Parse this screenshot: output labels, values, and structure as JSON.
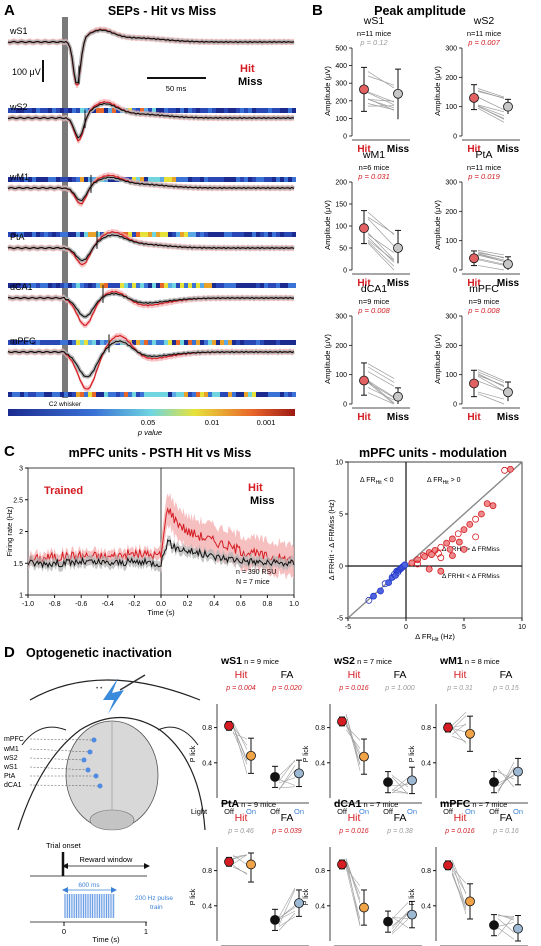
{
  "panelA": {
    "letter": "A",
    "title": "SEPs - Hit vs Miss",
    "regions": [
      "wS1",
      "wS2",
      "wM1",
      "PtA",
      "dCA1",
      "mPFC"
    ],
    "scale_amp": "100 μV",
    "scale_time": "50 ms",
    "legend_hit": "Hit",
    "legend_miss": "Miss",
    "stim_label": "C2 whisker",
    "colorbar_ticks": [
      "0.05",
      "0.01",
      "0.001"
    ],
    "colorbar_label": "p value"
  },
  "panelB": {
    "letter": "B",
    "title": "Peak amplitude",
    "ylabel": "Amplitude (μV)",
    "x_hit": "Hit",
    "x_miss": "Miss",
    "plots": [
      {
        "region": "wS1",
        "n": "n=11 mice",
        "p": "p = 0.12",
        "sig": false,
        "yticks": [
          "0",
          "100",
          "200",
          "300",
          "400",
          "500"
        ],
        "ymax": 500,
        "hit": 265,
        "hit_lo": 140,
        "hit_hi": 390,
        "miss": 240,
        "miss_lo": 95,
        "miss_hi": 380
      },
      {
        "region": "wS2",
        "n": "n=11 mice",
        "p": "p = 0.007",
        "sig": true,
        "yticks": [
          "0",
          "100",
          "200",
          "300"
        ],
        "ymax": 300,
        "hit": 130,
        "hit_lo": 90,
        "hit_hi": 175,
        "miss": 100,
        "miss_lo": 75,
        "miss_hi": 125
      },
      {
        "region": "wM1",
        "n": "n=6 mice",
        "p": "p = 0.031",
        "sig": true,
        "yticks": [
          "0",
          "50",
          "100",
          "150",
          "200"
        ],
        "ymax": 200,
        "hit": 95,
        "hit_lo": 60,
        "hit_hi": 135,
        "miss": 50,
        "miss_lo": 15,
        "miss_hi": 90
      },
      {
        "region": "PtA",
        "n": "n=11 mice",
        "p": "p = 0.019",
        "sig": true,
        "yticks": [
          "0",
          "100",
          "200",
          "300"
        ],
        "ymax": 300,
        "hit": 40,
        "hit_lo": 15,
        "hit_hi": 65,
        "miss": 20,
        "miss_lo": -5,
        "miss_hi": 45
      },
      {
        "region": "dCA1",
        "n": "n=9 mice",
        "p": "p = 0.008",
        "sig": true,
        "yticks": [
          "0",
          "100",
          "200",
          "300"
        ],
        "ymax": 300,
        "hit": 80,
        "hit_lo": 30,
        "hit_hi": 140,
        "miss": 25,
        "miss_lo": 0,
        "miss_hi": 55
      },
      {
        "region": "mPFC",
        "n": "n=9 mice",
        "p": "p = 0.008",
        "sig": true,
        "yticks": [
          "0",
          "100",
          "200",
          "300"
        ],
        "ymax": 300,
        "hit": 70,
        "hit_lo": 25,
        "hit_hi": 115,
        "miss": 40,
        "miss_lo": 10,
        "miss_hi": 75
      }
    ]
  },
  "panelC": {
    "letter": "C",
    "psth_title": "mPFC units - PSTH Hit vs Miss",
    "trained": "Trained",
    "hit": "Hit",
    "miss": "Miss",
    "ylabel": "Firing rate (Hz)",
    "xlabel": "Time (s)",
    "yticks": [
      "1",
      "1.5",
      "2",
      "2.5",
      "3"
    ],
    "xticks": [
      "-1.0",
      "-0.8",
      "-0.6",
      "-0.4",
      "-0.2",
      "0.0",
      "0.2",
      "0.4",
      "0.6",
      "0.8",
      "1.0"
    ],
    "n_rsu": "n = 390 RSU",
    "n_mice": "N = 7 mice",
    "mod_title": "mPFC units - modulation",
    "mod_xlabel": "Δ FR",
    "mod_xlabel_sub": "Hit",
    "mod_xlabel_unit": "(Hz)",
    "mod_ylabel": "Δ FRHit - Δ FRMiss (Hz)",
    "mod_xticks": [
      "-5",
      "0",
      "5",
      "10"
    ],
    "mod_yticks": [
      "-5",
      "0",
      "5",
      "10"
    ],
    "q_neg": "Δ FR",
    "q_neg_sub": "Hit",
    "q_neg_rel": "< 0",
    "q_pos": "Δ FR",
    "q_pos_sub": "Hit",
    "q_pos_rel": "> 0",
    "q_gt": "Δ FRHit > Δ FRMiss",
    "q_lt": "Δ FRHit < Δ FRMiss"
  },
  "chart_data": [
    {
      "type": "line",
      "title": "mPFC units - PSTH Hit vs Miss",
      "xlabel": "Time (s)",
      "ylabel": "Firing rate (Hz)",
      "xlim": [
        -1.0,
        1.0
      ],
      "ylim": [
        1,
        3
      ],
      "x": [
        -1.0,
        -0.8,
        -0.6,
        -0.4,
        -0.2,
        0.0,
        0.05,
        0.1,
        0.2,
        0.4,
        0.6,
        0.8,
        1.0
      ],
      "series": [
        {
          "name": "Hit",
          "values": [
            1.55,
            1.6,
            1.62,
            1.6,
            1.65,
            1.62,
            2.4,
            2.2,
            2.0,
            1.85,
            1.7,
            1.6,
            1.55
          ]
        },
        {
          "name": "Miss",
          "values": [
            1.5,
            1.5,
            1.52,
            1.5,
            1.52,
            1.5,
            1.85,
            1.75,
            1.7,
            1.6,
            1.55,
            1.5,
            1.5
          ]
        }
      ]
    },
    {
      "type": "scatter",
      "title": "mPFC units - modulation",
      "xlim": [
        -5,
        10
      ],
      "ylim": [
        -5,
        10
      ],
      "series": [
        {
          "name": "",
          "points": [
            [
              -3.2,
              -3.3
            ],
            [
              -2.8,
              -2.9
            ],
            [
              -2.2,
              -2.4
            ],
            [
              -1.8,
              -1.7
            ],
            [
              -1.5,
              -1.6
            ],
            [
              -1.2,
              -1.1
            ],
            [
              -1,
              -0.8
            ],
            [
              -0.8,
              -0.5
            ],
            [
              -0.6,
              -0.4
            ],
            [
              -0.5,
              -0.3
            ],
            [
              -0.4,
              -0.2
            ],
            [
              -0.3,
              -0.1
            ],
            [
              -0.2,
              0
            ],
            [
              -0.1,
              0.1
            ],
            [
              -0.9,
              -0.9
            ],
            [
              -0.7,
              -0.6
            ]
          ]
        },
        {
          "name": "",
          "points": [
            [
              0.5,
              0.3
            ],
            [
              1,
              0.6
            ],
            [
              1.5,
              1.0
            ],
            [
              2,
              1.3
            ],
            [
              2.5,
              1.5
            ],
            [
              3,
              1.8
            ],
            [
              3.5,
              2.2
            ],
            [
              4,
              2.6
            ],
            [
              4.5,
              3.1
            ],
            [
              5,
              3.5
            ],
            [
              5.5,
              4.0
            ],
            [
              6,
              4.5
            ],
            [
              6.5,
              5.0
            ],
            [
              7,
              6.0
            ],
            [
              8.5,
              9.2
            ],
            [
              9,
              9.3
            ],
            [
              7.5,
              5.8
            ],
            [
              3,
              0.8
            ],
            [
              4,
              1.0
            ],
            [
              5,
              1.6
            ],
            [
              6,
              2.8
            ],
            [
              2,
              -0.3
            ],
            [
              3,
              -0.5
            ],
            [
              1,
              0.2
            ],
            [
              1.6,
              0.9
            ],
            [
              2.2,
              1.1
            ],
            [
              2.8,
              1.2
            ],
            [
              3.8,
              1.6
            ],
            [
              4.6,
              2.3
            ]
          ]
        }
      ]
    }
  ],
  "panelD": {
    "letter": "D",
    "title": "Optogenetic inactivation",
    "atlas_regions": [
      "mPFC",
      "wM1",
      "wS2",
      "wS1",
      "PtA",
      "dCA1"
    ],
    "trial_onset": "Trial onset",
    "reward_window": "Reward window",
    "dur": "600 ms",
    "pulse1": "200 Hz pulse",
    "pulse2": "train",
    "time_ticks": [
      "0",
      "1"
    ],
    "time_label": "Time (s)",
    "ylabel": "P lick",
    "yticks": [
      "0.4",
      "0.8"
    ],
    "xl_off": "Off",
    "xl_on": "On",
    "xl_light": "Light",
    "hit": "Hit",
    "fa": "FA",
    "plots": [
      {
        "region": "wS1",
        "n": "n = 9 mice",
        "p_hit": "p = 0.004",
        "hit_sig": true,
        "p_fa": "p = 0.020",
        "fa_sig": true,
        "hit_off": 0.82,
        "hit_on": 0.48,
        "fa_off": 0.24,
        "fa_on": 0.28
      },
      {
        "region": "wS2",
        "n": "n = 7 mice",
        "p_hit": "p = 0.016",
        "hit_sig": true,
        "p_fa": "p = 1.000",
        "fa_sig": false,
        "hit_off": 0.87,
        "hit_on": 0.47,
        "fa_off": 0.18,
        "fa_on": 0.2
      },
      {
        "region": "wM1",
        "n": "n = 8 mice",
        "p_hit": "p = 0.31",
        "hit_sig": false,
        "p_fa": "p = 0.15",
        "fa_sig": false,
        "hit_off": 0.8,
        "hit_on": 0.73,
        "fa_off": 0.18,
        "fa_on": 0.3
      },
      {
        "region": "PtA",
        "n": "n = 9 mice",
        "p_hit": "p = 0.46",
        "hit_sig": false,
        "p_fa": "p = 0.039",
        "fa_sig": true,
        "hit_off": 0.9,
        "hit_on": 0.87,
        "fa_off": 0.24,
        "fa_on": 0.43
      },
      {
        "region": "dCA1",
        "n": "n = 7 mice",
        "p_hit": "p = 0.016",
        "hit_sig": true,
        "p_fa": "p = 0.38",
        "fa_sig": false,
        "hit_off": 0.87,
        "hit_on": 0.38,
        "fa_off": 0.22,
        "fa_on": 0.3
      },
      {
        "region": "mPFC",
        "n": "n = 7 mice",
        "p_hit": "p = 0.016",
        "hit_sig": true,
        "p_fa": "p = 0.16",
        "fa_sig": false,
        "hit_off": 0.86,
        "hit_on": 0.45,
        "fa_off": 0.18,
        "fa_on": 0.14
      }
    ]
  }
}
